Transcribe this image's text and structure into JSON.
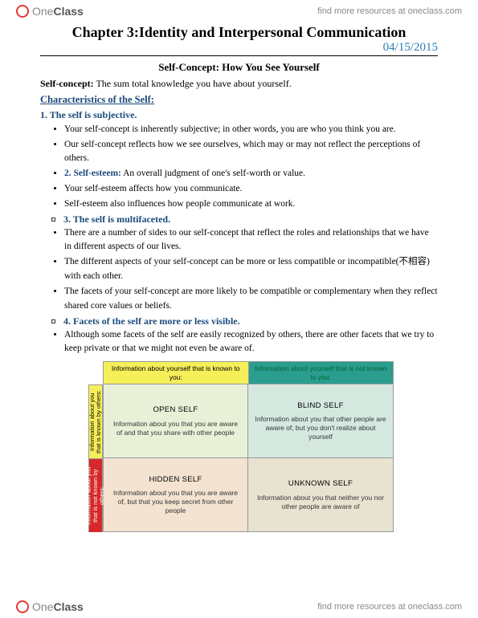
{
  "brand": {
    "name_light": "One",
    "name_bold": "Class",
    "link": "find more resources at oneclass.com"
  },
  "chapter_title": "Chapter 3:Identity and Interpersonal Communication",
  "date": "04/15/2015",
  "section_title": "Self-Concept: How You See Yourself",
  "def_term": "Self-concept:",
  "def_text": " The sum total knowledge you have about yourself.",
  "char_heading": "Characteristics of the Self:",
  "h1": "1. The self is subjective.",
  "b1": "Your self-concept is inherently subjective; in other words, you are who you think you are.",
  "b2": "Our self-concept reflects how we see ourselves, which may or may not reflect the perceptions of others.",
  "h2_term": "2. Self-esteem:",
  "h2_text": " An overall judgment of one's self-worth or value.",
  "b3": "Your self-esteem affects how you communicate.",
  "b4": "Self-esteem also influences how people communicate at work.",
  "h3": "3. The self is multifaceted.",
  "b5": "There are a number of sides to our self-concept that reflect the roles and relationships that we have in different aspects of our lives.",
  "b6": "The different aspects of your self-concept can be more or less compatible or incompatible(不相容) with each other.",
  "b7": "The facets of your self-concept are more likely to be compatible or complementary when they reflect shared core values or beliefs.",
  "h4": "4. Facets of the self are more or less visible.",
  "b8": "Although some facets of the self are easily recognized by others, there are other facets that we try to keep private or that we might not even be aware of.",
  "johari": {
    "top_left": "Information about yourself that is known to you:",
    "top_right": "Information about yourself that is not known to you:",
    "side_top": "Information about you that is known by others:",
    "side_bottom": "Information about you that is not known by others:",
    "open_t": "OPEN SELF",
    "open_d": "Information about you that you are aware of and that you share with other people",
    "blind_t": "BLIND SELF",
    "blind_d": "Information about you that other people are aware of, but you don't realize about yourself",
    "hidden_t": "HIDDEN SELF",
    "hidden_d": "Information about you that you are aware of, but that you keep secret from other people",
    "unknown_t": "UNKNOWN SELF",
    "unknown_d": "Information about you that neither you nor other people are aware of",
    "colors": {
      "top_left_bg": "#f5ef5a",
      "top_right_bg": "#2a9d8f",
      "side_top_bg": "#f5ef5a",
      "side_bottom_bg": "#d62828",
      "open_bg": "#e8f0d8",
      "blind_bg": "#d5e8e0",
      "hidden_bg": "#f3e3d0",
      "unknown_bg": "#e8e3d0",
      "border": "#999999"
    }
  }
}
